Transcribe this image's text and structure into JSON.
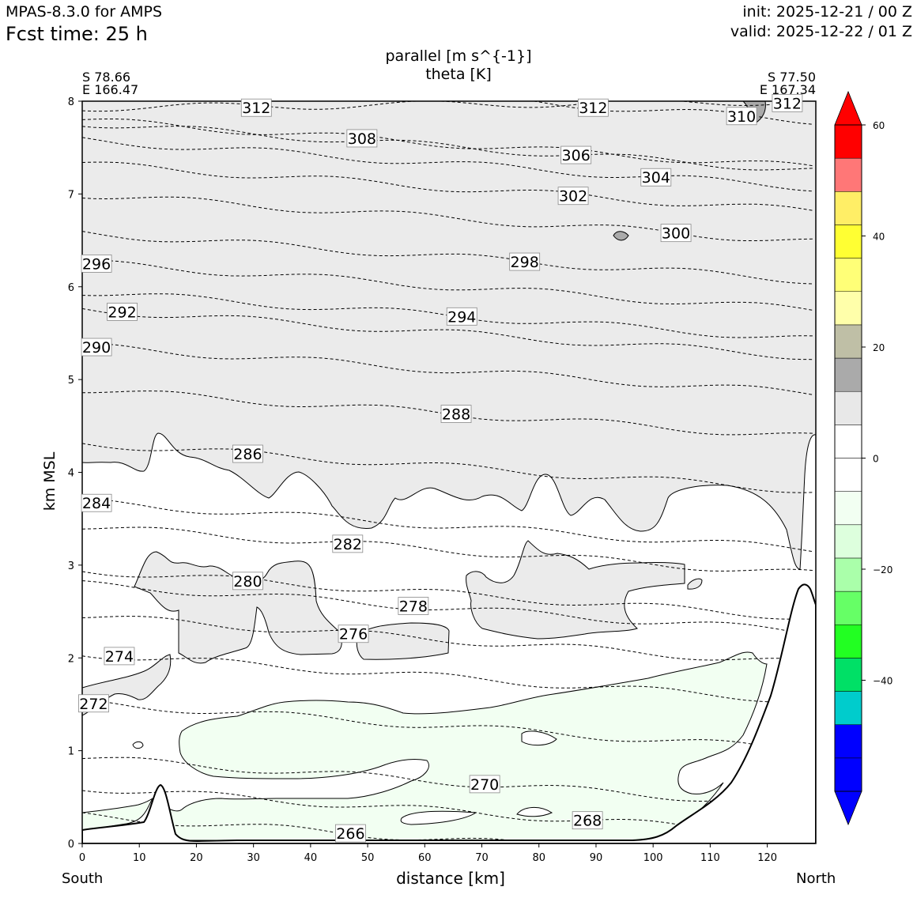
{
  "header": {
    "model": "MPAS-8.3.0 for AMPS",
    "fcst_time": "Fcst time:   25 h",
    "init": "init: 2025-12-21 / 00 Z",
    "valid": "valid: 2025-12-22 / 01 Z"
  },
  "chart_data": {
    "type": "contour-cross-section",
    "title_line1": "parallel [m s^{-1}]",
    "title_line2": "theta [K]",
    "xlabel": "distance [km]",
    "ylabel": "km MSL",
    "xlim": [
      0,
      128.5
    ],
    "ylim": [
      0,
      8
    ],
    "x_ticks": [
      "0",
      "10",
      "20",
      "30",
      "40",
      "50",
      "60",
      "70",
      "80",
      "90",
      "100",
      "110",
      "120"
    ],
    "y_ticks": [
      "0",
      "1",
      "2",
      "3",
      "4",
      "5",
      "6",
      "7",
      "8"
    ],
    "start_point": {
      "lat": "S 78.66",
      "lon": "E 166.47",
      "label": "South"
    },
    "end_point": {
      "lat": "S 77.50",
      "lon": "E 167.34",
      "label": "North"
    },
    "theta_contour_labels": [
      {
        "value": "312",
        "x": 30.5,
        "y": 7.93
      },
      {
        "value": "312",
        "x": 89.5,
        "y": 7.93
      },
      {
        "value": "312",
        "x": 123.5,
        "y": 7.98
      },
      {
        "value": "310",
        "x": 115.5,
        "y": 7.84
      },
      {
        "value": "308",
        "x": 49,
        "y": 7.6
      },
      {
        "value": "306",
        "x": 86.5,
        "y": 7.42
      },
      {
        "value": "304",
        "x": 100.5,
        "y": 7.18
      },
      {
        "value": "302",
        "x": 86,
        "y": 6.98
      },
      {
        "value": "300",
        "x": 104,
        "y": 6.58
      },
      {
        "value": "298",
        "x": 77.5,
        "y": 6.27
      },
      {
        "value": "296",
        "x": 2.5,
        "y": 6.25
      },
      {
        "value": "294",
        "x": 66.5,
        "y": 5.68
      },
      {
        "value": "292",
        "x": 7,
        "y": 5.73
      },
      {
        "value": "290",
        "x": 2.5,
        "y": 5.35
      },
      {
        "value": "288",
        "x": 65.5,
        "y": 4.63
      },
      {
        "value": "286",
        "x": 29,
        "y": 4.2
      },
      {
        "value": "284",
        "x": 2.5,
        "y": 3.67
      },
      {
        "value": "282",
        "x": 46.5,
        "y": 3.23
      },
      {
        "value": "280",
        "x": 29,
        "y": 2.83
      },
      {
        "value": "278",
        "x": 58,
        "y": 2.56
      },
      {
        "value": "276",
        "x": 47.5,
        "y": 2.26
      },
      {
        "value": "274",
        "x": 6.5,
        "y": 2.02
      },
      {
        "value": "272",
        "x": 2,
        "y": 1.51
      },
      {
        "value": "270",
        "x": 70.5,
        "y": 0.64
      },
      {
        "value": "268",
        "x": 88.5,
        "y": 0.25
      },
      {
        "value": "266",
        "x": 47,
        "y": 0.11
      }
    ],
    "colorbar": {
      "levels": [
        -60,
        -50,
        -45,
        -40,
        -35,
        -30,
        -25,
        -20,
        -15,
        -10,
        -5,
        0,
        5,
        10,
        15,
        20,
        25,
        30,
        35,
        40,
        45,
        50,
        55,
        60
      ],
      "tick_labels": [
        "60",
        "40",
        "20",
        "0",
        "−20",
        "−40"
      ],
      "tick_values": [
        60,
        40,
        20,
        0,
        -20,
        -40
      ],
      "colors_bottom_to_top": [
        "#0000ff",
        "#0000ff",
        "#00cccc",
        "#00e066",
        "#22ff22",
        "#66ff66",
        "#aaffaa",
        "#ddffdd",
        "#f2fff2",
        "#ffffff",
        "#ffffff",
        "#e8e8e8",
        "#aaaaaa",
        "#bfbfa6",
        "#ffffaa",
        "#ffff77",
        "#ffff33",
        "#ffee66",
        "#ff7777",
        "#ff0000"
      ],
      "extend": "both"
    }
  }
}
